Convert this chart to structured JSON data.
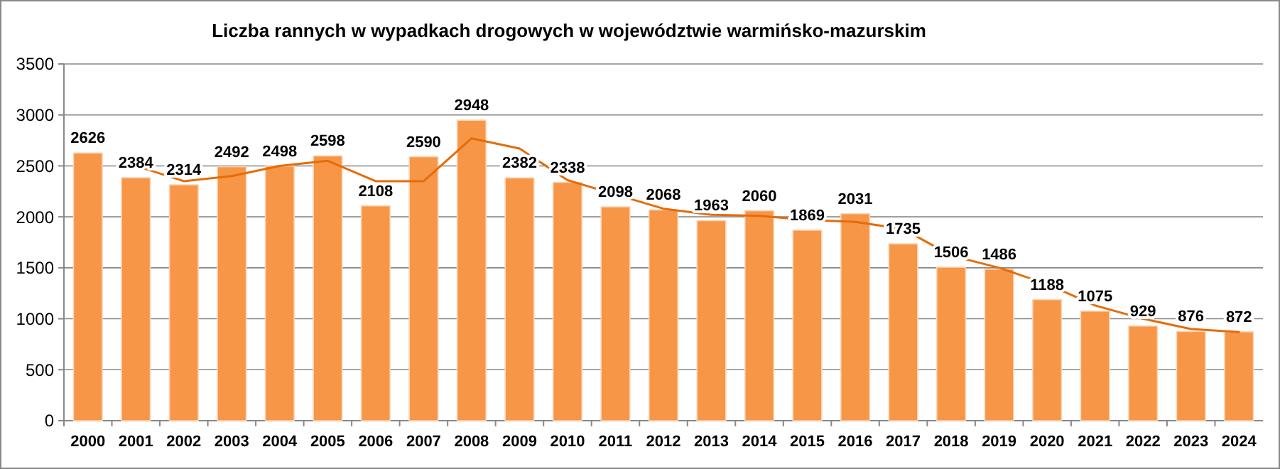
{
  "chart_data": {
    "type": "bar",
    "title": "Liczba rannych w wypadkach drogowych w województwie warmińsko-mazurskim",
    "categories": [
      "2000",
      "2001",
      "2002",
      "2003",
      "2004",
      "2005",
      "2006",
      "2007",
      "2008",
      "2009",
      "2010",
      "2011",
      "2012",
      "2013",
      "2014",
      "2015",
      "2016",
      "2017",
      "2018",
      "2019",
      "2020",
      "2021",
      "2022",
      "2023",
      "2024"
    ],
    "series": [
      {
        "color": "#f79646",
        "values": [
          2626,
          2384,
          2314,
          2492,
          2498,
          2598,
          2108,
          2590,
          2948,
          2382,
          2338,
          2098,
          2068,
          1963,
          2060,
          1869,
          2031,
          1735,
          1506,
          1486,
          1188,
          1075,
          929,
          876,
          872
        ],
        "value_labels": [
          "2626",
          "2384",
          "2314",
          "2492",
          "2498",
          "2598",
          "2108",
          "2590",
          "2948",
          "2382",
          "2338",
          "2098",
          "2068",
          "1963",
          "2060",
          "1869",
          "2031",
          "1735",
          "1506",
          "1486",
          "1188",
          "1075",
          "929",
          "876",
          "872"
        ]
      },
      {
        "type": "line",
        "color": "#e46c0a",
        "values": [
          null,
          2500,
          2350,
          2400,
          2500,
          2550,
          2350,
          2350,
          2770,
          2670,
          2360,
          2220,
          2080,
          2020,
          2010,
          1970,
          1950,
          1880,
          1620,
          1500,
          1340,
          1130,
          1000,
          900,
          870
        ]
      }
    ],
    "ylim": [
      0,
      3500
    ],
    "yticks": [
      0,
      500,
      1000,
      1500,
      2000,
      2500,
      3000,
      3500
    ],
    "grid": "y",
    "marker": "none",
    "line_style": "solid"
  }
}
